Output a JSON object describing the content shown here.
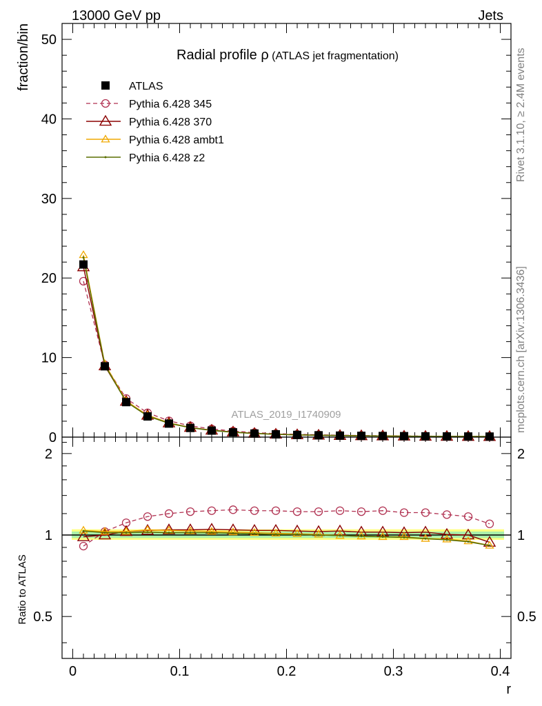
{
  "header": {
    "left": "13000 GeV pp",
    "right": "Jets"
  },
  "plot_title": {
    "main": "Radial profile ",
    "symbol": "ρ",
    "sub": " (ATLAS jet fragmentation)"
  },
  "watermark": "ATLAS_2019_I1740909",
  "side_text": {
    "rivet": "Rivet 3.1.10, ≥ 2.4M events",
    "mcplots": "mcplots.cern.ch [arXiv:1306.3436]"
  },
  "colors": {
    "atlas": "#000000",
    "p345": "#b03050",
    "p370": "#8b0000",
    "ambt1": "#f0a800",
    "z2": "#5a6e00",
    "band_green": "#aaf0aa",
    "band_yellow": "#ffff80"
  },
  "chart_data": [
    {
      "type": "line",
      "panel": "main",
      "ylabel": "fraction/bin",
      "xlim": [
        -0.01,
        0.41
      ],
      "ylim": [
        0,
        52
      ],
      "ytick_labels": [
        "0",
        "10",
        "20",
        "30",
        "40",
        "50"
      ],
      "x": [
        0.01,
        0.03,
        0.05,
        0.07,
        0.09,
        0.11,
        0.13,
        0.15,
        0.17,
        0.19,
        0.21,
        0.23,
        0.25,
        0.27,
        0.29,
        0.31,
        0.33,
        0.35,
        0.37,
        0.39
      ],
      "series": [
        {
          "name": "ATLAS",
          "key": "atlas",
          "values": [
            21.7,
            8.9,
            4.4,
            2.6,
            1.7,
            1.15,
            0.82,
            0.6,
            0.45,
            0.35,
            0.28,
            0.23,
            0.19,
            0.16,
            0.14,
            0.12,
            0.1,
            0.09,
            0.08,
            0.07
          ]
        },
        {
          "name": "Pythia 6.428 345",
          "key": "p345",
          "values": [
            19.6,
            9.1,
            4.85,
            3.05,
            2.05,
            1.42,
            1.03,
            0.76,
            0.57,
            0.44,
            0.35,
            0.29,
            0.24,
            0.2,
            0.17,
            0.15,
            0.13,
            0.11,
            0.1,
            0.08
          ]
        },
        {
          "name": "Pythia 6.428 370",
          "key": "p370",
          "values": [
            21.4,
            8.95,
            4.5,
            2.75,
            1.78,
            1.22,
            0.87,
            0.64,
            0.47,
            0.37,
            0.29,
            0.24,
            0.2,
            0.17,
            0.15,
            0.12,
            0.1,
            0.09,
            0.08,
            0.07
          ]
        },
        {
          "name": "Pythia 6.428 ambt1",
          "key": "ambt1",
          "values": [
            22.9,
            9.2,
            4.55,
            2.75,
            1.79,
            1.2,
            0.85,
            0.62,
            0.46,
            0.36,
            0.28,
            0.23,
            0.19,
            0.16,
            0.14,
            0.12,
            0.1,
            0.09,
            0.08,
            0.07
          ]
        },
        {
          "name": "Pythia 6.428 z2",
          "key": "z2",
          "values": [
            22.6,
            9.05,
            4.45,
            2.65,
            1.74,
            1.18,
            0.84,
            0.61,
            0.46,
            0.35,
            0.28,
            0.23,
            0.19,
            0.16,
            0.14,
            0.12,
            0.1,
            0.09,
            0.08,
            0.07
          ]
        }
      ]
    },
    {
      "type": "line",
      "panel": "ratio",
      "ylabel": "Ratio to ATLAS",
      "xlabel": "r",
      "xlim": [
        -0.01,
        0.41
      ],
      "ylim": [
        0.35,
        2.3
      ],
      "yscale": "log",
      "ytick_labels": [
        "0.5",
        "1",
        "2"
      ],
      "xtick_labels": [
        "0",
        "0.1",
        "0.2",
        "0.3",
        "0.4"
      ],
      "x": [
        0.01,
        0.03,
        0.05,
        0.07,
        0.09,
        0.11,
        0.13,
        0.15,
        0.17,
        0.19,
        0.21,
        0.23,
        0.25,
        0.27,
        0.29,
        0.31,
        0.33,
        0.35,
        0.37,
        0.39
      ],
      "reference_band": {
        "outer": [
          0.96,
          1.05
        ],
        "inner": [
          0.975,
          1.03
        ]
      },
      "series": [
        {
          "name": "Pythia 6.428 345",
          "key": "p345",
          "values": [
            0.91,
            1.03,
            1.11,
            1.17,
            1.2,
            1.22,
            1.23,
            1.24,
            1.23,
            1.23,
            1.22,
            1.22,
            1.23,
            1.22,
            1.23,
            1.21,
            1.21,
            1.19,
            1.17,
            1.1
          ]
        },
        {
          "name": "Pythia 6.428 370",
          "key": "p370",
          "values": [
            0.985,
            1.0,
            1.03,
            1.04,
            1.045,
            1.045,
            1.05,
            1.045,
            1.04,
            1.04,
            1.035,
            1.03,
            1.035,
            1.025,
            1.025,
            1.02,
            1.025,
            1.005,
            1.0,
            0.94
          ]
        },
        {
          "name": "Pythia 6.428 ambt1",
          "key": "ambt1",
          "values": [
            1.04,
            1.03,
            1.03,
            1.045,
            1.04,
            1.035,
            1.03,
            1.025,
            1.02,
            1.015,
            1.01,
            1.005,
            0.995,
            0.99,
            0.985,
            0.985,
            0.97,
            0.965,
            0.95,
            0.915
          ]
        },
        {
          "name": "Pythia 6.428 z2",
          "key": "z2",
          "values": [
            1.035,
            1.02,
            1.02,
            1.025,
            1.02,
            1.02,
            1.02,
            1.015,
            1.01,
            1.005,
            1.005,
            1.0,
            0.995,
            0.99,
            0.985,
            0.98,
            0.97,
            0.96,
            0.945,
            0.915
          ]
        }
      ]
    }
  ]
}
